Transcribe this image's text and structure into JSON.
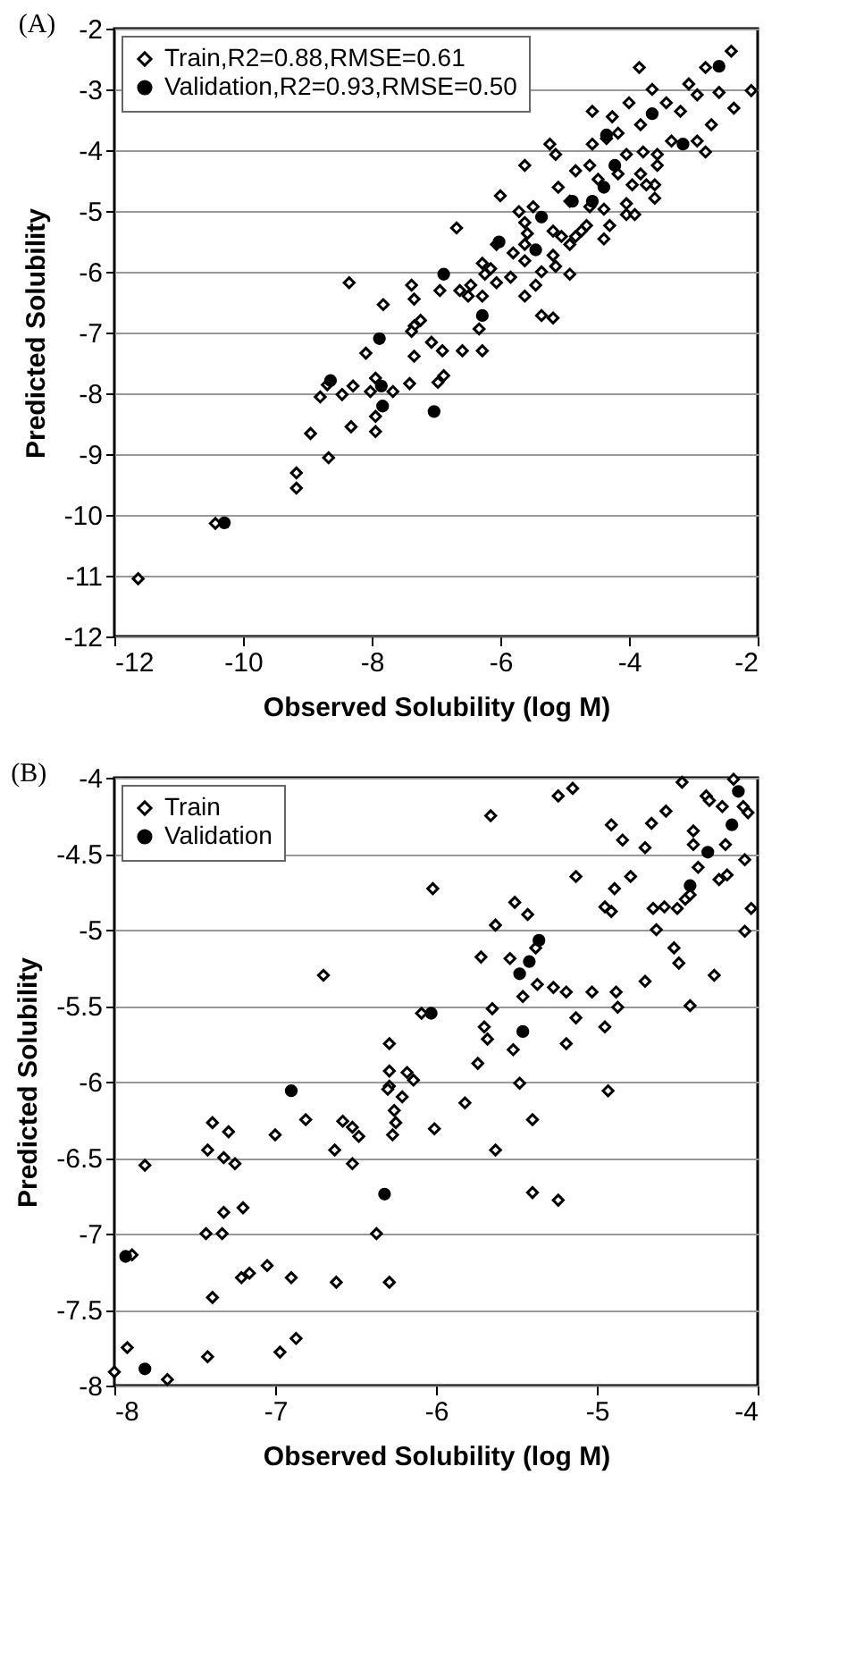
{
  "chart_data": [
    {
      "type": "scatter",
      "title": "(A)",
      "xlabel": "Observed Solubility (log M)",
      "ylabel": "Predicted Solubility",
      "xlim": [
        -12,
        -2
      ],
      "ylim": [
        -12,
        -2
      ],
      "xticks": [
        -12,
        -10,
        -8,
        -6,
        -4,
        -2
      ],
      "yticks": [
        -12,
        -11,
        -10,
        -9,
        -8,
        -7,
        -6,
        -5,
        -4,
        -3,
        -2
      ],
      "grid": "y",
      "legend": "top left",
      "series": [
        {
          "name": "Train,R2=0.88,RMSE=0.61",
          "color": "#000000",
          "marker": "diamond",
          "x": [
            -2.41,
            -3.84,
            -2.81,
            -2.1,
            -2.37,
            -2.6,
            -2.94,
            -3.07,
            -3.64,
            -3.42,
            -3.2,
            -4.57,
            -4.26,
            -4.0,
            -3.82,
            -4.17,
            -4.35,
            -4.57,
            -2.72,
            -2.94,
            -2.81,
            -3.34,
            -3.56,
            -3.78,
            -4.04,
            -5.23,
            -5.14,
            -5.62,
            -4.83,
            -4.61,
            -4.48,
            -4.17,
            -3.82,
            -3.56,
            -3.6,
            -3.73,
            -3.95,
            -3.6,
            -5.1,
            -4.92,
            -6.0,
            -5.49,
            -4.61,
            -4.39,
            -4.04,
            -4.04,
            -3.91,
            -4.3,
            -4.39,
            -4.66,
            -4.74,
            -5.18,
            -5.05,
            -4.83,
            -4.92,
            -5.62,
            -5.58,
            -5.71,
            -6.68,
            -6.06,
            -5.62,
            -5.8,
            -5.62,
            -5.18,
            -5.14,
            -5.36,
            -4.92,
            -5.45,
            -5.62,
            -5.36,
            -5.18,
            -5.84,
            -6.06,
            -6.28,
            -6.24,
            -6.15,
            -6.46,
            -6.63,
            -6.5,
            -6.28,
            -6.33,
            -7.38,
            -7.34,
            -7.82,
            -8.35,
            -6.94,
            -7.24,
            -7.34,
            -7.38,
            -7.07,
            -6.9,
            -6.59,
            -6.28,
            -7.34,
            -8.09,
            -11.63,
            -10.43,
            -9.17,
            -9.17,
            -8.67,
            -8.95,
            -8.8,
            -8.69,
            -8.46,
            -8.29,
            -8.02,
            -7.94,
            -7.67,
            -7.41,
            -8.32,
            -7.94,
            -7.94,
            -6.97,
            -6.88
          ],
          "values": [
            -2.37,
            -2.64,
            -2.64,
            -3.02,
            -3.31,
            -3.05,
            -3.09,
            -2.91,
            -3.0,
            -3.22,
            -3.36,
            -3.36,
            -3.45,
            -3.22,
            -3.58,
            -3.72,
            -3.81,
            -3.9,
            -3.58,
            -3.85,
            -4.03,
            -3.85,
            -4.07,
            -4.03,
            -4.07,
            -3.9,
            -4.07,
            -4.25,
            -4.34,
            -4.25,
            -4.48,
            -4.39,
            -4.39,
            -4.25,
            -4.57,
            -4.57,
            -4.57,
            -4.79,
            -4.61,
            -4.84,
            -4.75,
            -4.93,
            -4.93,
            -4.97,
            -4.88,
            -5.06,
            -5.06,
            -5.24,
            -5.46,
            -5.24,
            -5.33,
            -5.33,
            -5.42,
            -5.42,
            -5.55,
            -5.19,
            -5.37,
            -5.01,
            -5.28,
            -5.55,
            -5.55,
            -5.69,
            -5.82,
            -5.73,
            -5.91,
            -6.0,
            -6.04,
            -6.22,
            -6.4,
            -6.72,
            -6.76,
            -6.09,
            -6.18,
            -5.86,
            -6.04,
            -5.95,
            -6.22,
            -6.31,
            -6.4,
            -6.4,
            -6.94,
            -6.22,
            -6.45,
            -6.54,
            -6.18,
            -6.31,
            -6.8,
            -6.89,
            -6.98,
            -7.16,
            -7.3,
            -7.3,
            -7.3,
            -7.39,
            -7.34,
            -11.05,
            -10.14,
            -9.31,
            -9.56,
            -9.06,
            -8.66,
            -8.06,
            -7.86,
            -8.02,
            -7.88,
            -7.97,
            -7.75,
            -7.97,
            -7.84,
            -8.55,
            -8.38,
            -8.63,
            -7.82,
            -7.71
          ]
        },
        {
          "name": "Validation,R2=0.93,RMSE=0.50",
          "color": "#000000",
          "marker": "circle",
          "x": [
            -2.6,
            -3.64,
            -3.16,
            -4.35,
            -4.22,
            -4.39,
            -4.57,
            -4.88,
            -5.36,
            -5.45,
            -6.02,
            -6.88,
            -6.28,
            -7.88,
            -10.29,
            -8.64,
            -7.85,
            -7.83,
            -7.03
          ],
          "values": [
            -2.62,
            -3.4,
            -3.9,
            -3.75,
            -4.25,
            -4.61,
            -4.84,
            -4.84,
            -5.1,
            -5.64,
            -5.51,
            -6.04,
            -6.72,
            -7.1,
            -10.13,
            -7.79,
            -7.88,
            -8.21,
            -8.3
          ]
        }
      ]
    },
    {
      "type": "scatter",
      "title": "(B)",
      "xlabel": "Observed Solubility (log M)",
      "ylabel": "Predicted Solubility",
      "xlim": [
        -8,
        -4
      ],
      "ylim": [
        -8,
        -4
      ],
      "xticks": [
        -8,
        -7,
        -6,
        -5,
        -4
      ],
      "yticks": [
        -8,
        -7.5,
        -7,
        -6.5,
        -6,
        -5.5,
        -5,
        -4.5,
        -4
      ],
      "grid": "y",
      "legend": "top left",
      "series": [
        {
          "name": "Train",
          "color": "#000000",
          "marker": "diamond",
          "x": [
            -4.47,
            -4.15,
            -5.24,
            -5.15,
            -5.66,
            -4.32,
            -4.3,
            -4.22,
            -4.09,
            -4.06,
            -4.57,
            -4.66,
            -4.91,
            -4.84,
            -4.7,
            -4.4,
            -4.4,
            -4.2,
            -4.08,
            -4.37,
            -4.19,
            -4.24,
            -4.79,
            -5.13,
            -4.89,
            -6.02,
            -5.51,
            -5.43,
            -4.95,
            -4.91,
            -4.65,
            -4.58,
            -4.5,
            -4.45,
            -4.42,
            -4.04,
            -4.08,
            -4.63,
            -5.63,
            -5.38,
            -5.72,
            -5.54,
            -4.52,
            -4.49,
            -4.27,
            -4.7,
            -6.7,
            -5.37,
            -5.27,
            -5.19,
            -5.03,
            -4.88,
            -5.46,
            -4.87,
            -4.42,
            -5.65,
            -6.09,
            -5.7,
            -5.68,
            -5.13,
            -4.95,
            -5.19,
            -6.29,
            -5.52,
            -5.74,
            -6.29,
            -6.18,
            -6.14,
            -5.48,
            -4.93,
            -6.29,
            -6.3,
            -6.21,
            -6.26,
            -6.25,
            -6.27,
            -5.82,
            -6.01,
            -5.4,
            -5.63,
            -5.4,
            -5.24,
            -6.81,
            -7.0,
            -6.58,
            -6.52,
            -6.48,
            -6.63,
            -6.52,
            -7.39,
            -7.29,
            -7.42,
            -7.32,
            -7.25,
            -7.81,
            -7.32,
            -7.2,
            -7.43,
            -7.33,
            -6.37,
            -7.89,
            -7.21,
            -7.16,
            -7.05,
            -6.9,
            -6.62,
            -6.29,
            -7.39,
            -7.92,
            -7.42,
            -6.97,
            -6.87,
            -8.0,
            -7.67
          ],
          "values": [
            -4.03,
            -4.01,
            -4.12,
            -4.07,
            -4.25,
            -4.12,
            -4.15,
            -4.19,
            -4.19,
            -4.23,
            -4.22,
            -4.3,
            -4.31,
            -4.41,
            -4.46,
            -4.35,
            -4.44,
            -4.44,
            -4.54,
            -4.59,
            -4.64,
            -4.67,
            -4.65,
            -4.65,
            -4.73,
            -4.73,
            -4.82,
            -4.9,
            -4.85,
            -4.88,
            -4.86,
            -4.85,
            -4.86,
            -4.8,
            -4.77,
            -4.86,
            -5.01,
            -5.0,
            -4.97,
            -5.12,
            -5.18,
            -5.19,
            -5.12,
            -5.22,
            -5.3,
            -5.34,
            -5.3,
            -5.36,
            -5.38,
            -5.41,
            -5.41,
            -5.41,
            -5.44,
            -5.51,
            -5.5,
            -5.52,
            -5.55,
            -5.64,
            -5.72,
            -5.58,
            -5.64,
            -5.75,
            -5.75,
            -5.79,
            -5.88,
            -5.93,
            -5.94,
            -5.99,
            -6.01,
            -6.06,
            -6.03,
            -6.05,
            -6.1,
            -6.19,
            -6.27,
            -6.35,
            -6.14,
            -6.31,
            -6.25,
            -6.45,
            -6.73,
            -6.78,
            -6.25,
            -6.35,
            -6.26,
            -6.3,
            -6.36,
            -6.45,
            -6.54,
            -6.27,
            -6.33,
            -6.45,
            -6.5,
            -6.54,
            -6.55,
            -6.86,
            -6.83,
            -7.0,
            -7.0,
            -7.0,
            -7.14,
            -7.29,
            -7.26,
            -7.21,
            -7.29,
            -7.32,
            -7.32,
            -7.42,
            -7.75,
            -7.81,
            -7.78,
            -7.69,
            -7.91,
            -7.96
          ]
        },
        {
          "name": "Validation",
          "color": "#000000",
          "marker": "circle",
          "x": [
            -4.12,
            -4.16,
            -4.31,
            -4.42,
            -5.36,
            -5.42,
            -5.48,
            -6.03,
            -5.46,
            -6.9,
            -6.32,
            -7.93,
            -7.81
          ],
          "values": [
            -4.09,
            -4.31,
            -4.49,
            -4.71,
            -5.07,
            -5.21,
            -5.29,
            -5.55,
            -5.67,
            -6.06,
            -6.74,
            -7.15,
            -7.89
          ]
        }
      ]
    }
  ]
}
